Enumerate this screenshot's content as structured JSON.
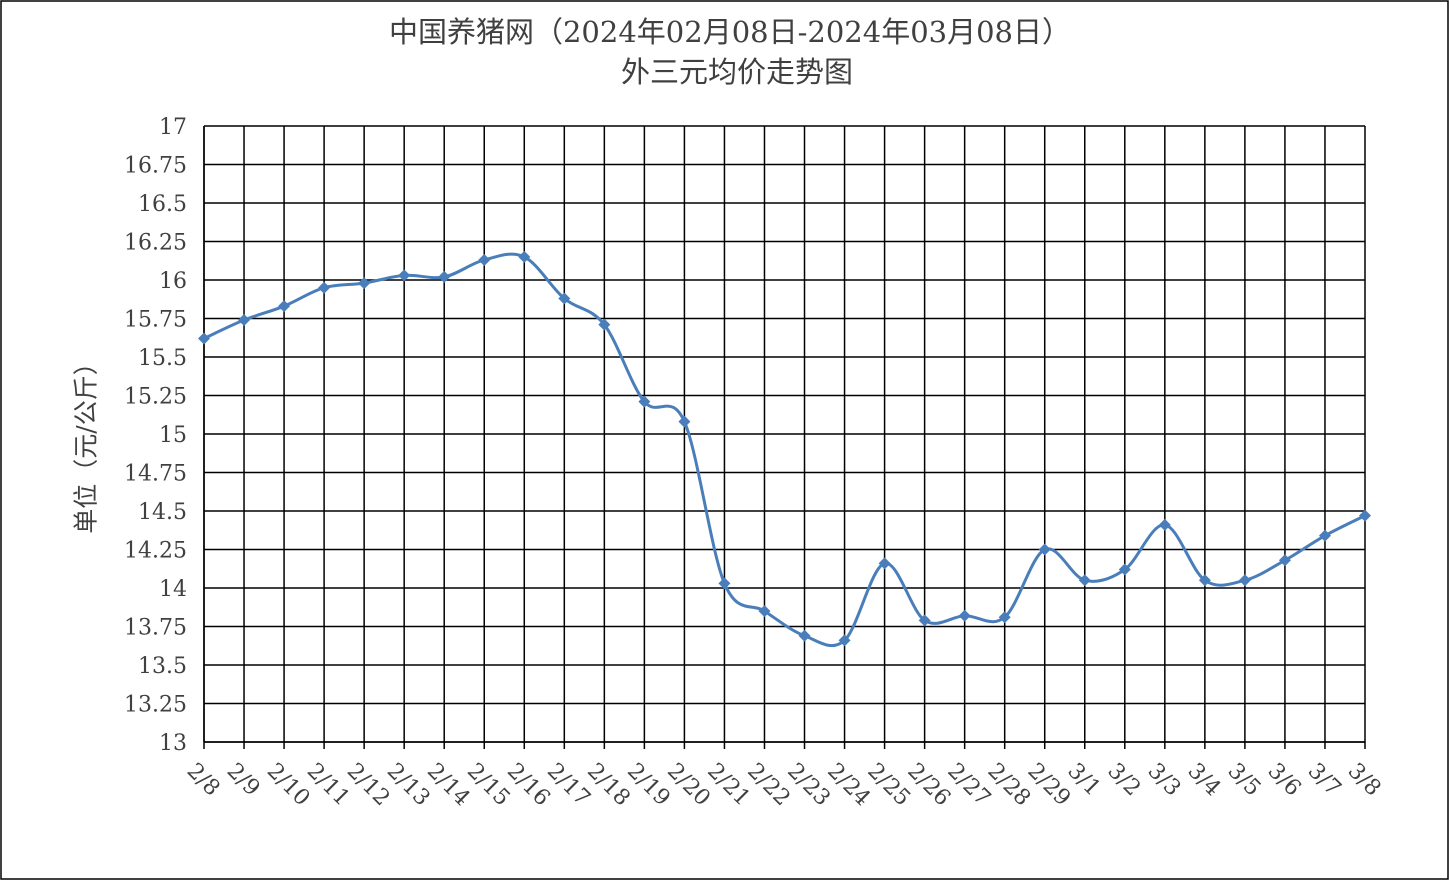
{
  "chart_data": {
    "type": "line",
    "title": "中国养猪网（2024年02月08日-2024年03月08日）",
    "subtitle": "外三元均价走势图",
    "y_label": "单位（元/公斤）",
    "categories": [
      "2/8",
      "2/9",
      "2/10",
      "2/11",
      "2/12",
      "2/13",
      "2/14",
      "2/15",
      "2/16",
      "2/17",
      "2/18",
      "2/19",
      "2/20",
      "2/21",
      "2/22",
      "2/23",
      "2/24",
      "2/25",
      "2/26",
      "2/27",
      "2/28",
      "2/29",
      "3/1",
      "3/2",
      "3/3",
      "3/4",
      "3/5",
      "3/6",
      "3/7",
      "3/8"
    ],
    "series": [
      {
        "name": "外三元均价",
        "color": "#4a7ebb",
        "values": [
          15.62,
          15.74,
          15.83,
          15.95,
          15.98,
          16.03,
          16.02,
          16.13,
          16.15,
          15.88,
          15.71,
          15.21,
          15.08,
          14.03,
          13.85,
          13.69,
          13.66,
          14.16,
          13.79,
          13.82,
          13.81,
          14.25,
          14.05,
          14.12,
          14.41,
          14.05,
          14.05,
          14.18,
          14.34,
          14.47
        ]
      }
    ],
    "ylim": [
      13,
      17
    ],
    "yticks": [
      13,
      13.25,
      13.5,
      13.75,
      14,
      14.25,
      14.5,
      14.75,
      15,
      15.25,
      15.5,
      15.75,
      16,
      16.25,
      16.5,
      16.75,
      17
    ],
    "grid": true,
    "smooth": true
  }
}
